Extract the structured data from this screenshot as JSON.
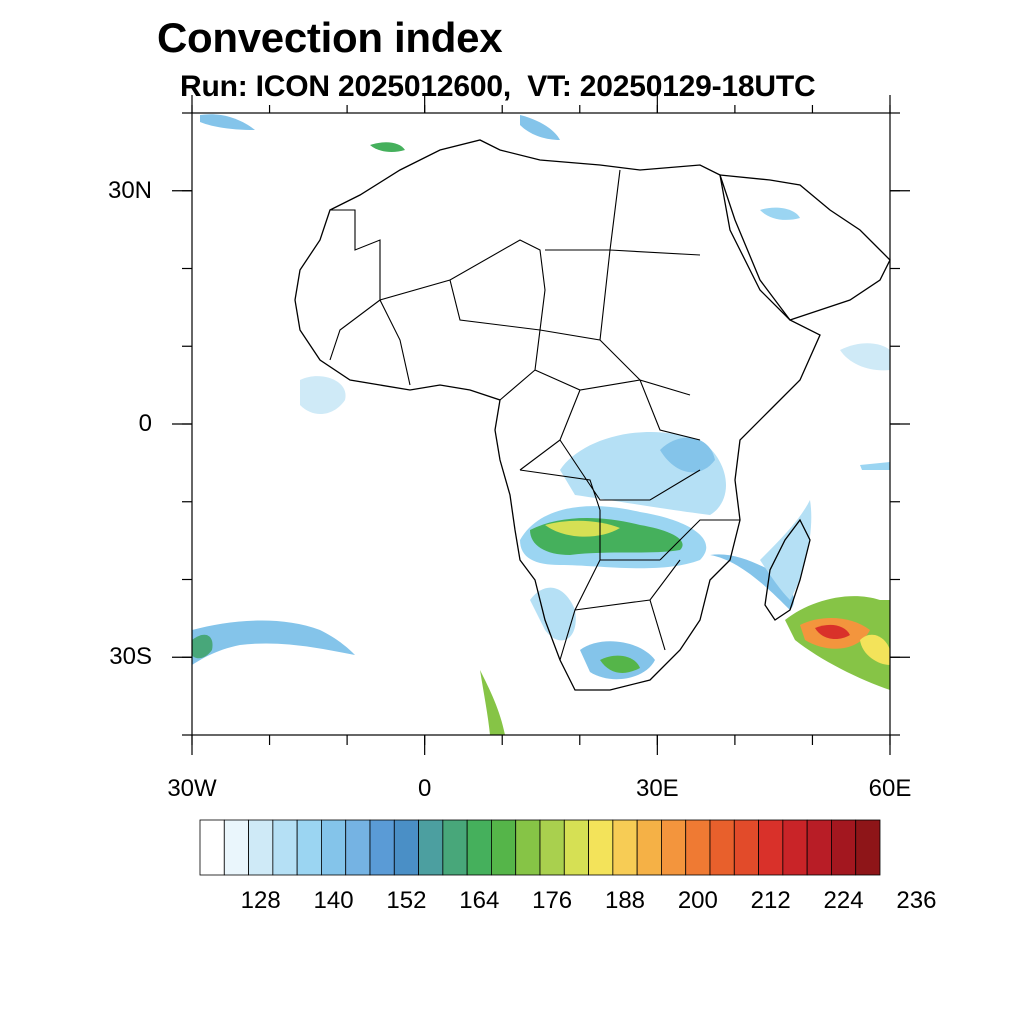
{
  "title": "Convection index",
  "subtitle": "Run: ICON 2025012600,  VT: 20250129-18UTC",
  "map": {
    "extent": {
      "lon_min": -30,
      "lon_max": 60,
      "lat_min": -40,
      "lat_max": 40
    },
    "lat_ticks": [
      {
        "label": "30N",
        "lat": 30
      },
      {
        "label": "0",
        "lat": 0
      },
      {
        "label": "30S",
        "lat": -30
      }
    ],
    "lon_ticks": [
      {
        "label": "30W",
        "lon": -30
      },
      {
        "label": "0",
        "lon": 0
      },
      {
        "label": "30E",
        "lon": 30
      },
      {
        "label": "60E",
        "lon": 60
      }
    ]
  },
  "colorbar": {
    "labels": [
      "128",
      "140",
      "152",
      "164",
      "176",
      "188",
      "200",
      "212",
      "224",
      "236"
    ],
    "colors": [
      "#ffffff",
      "#eaf6fc",
      "#cfeaf7",
      "#b5e0f5",
      "#9bd5f2",
      "#84c4ea",
      "#75b3e3",
      "#5a9bd6",
      "#4a8fc6",
      "#4c9fa0",
      "#48a77a",
      "#45b05c",
      "#55b549",
      "#86c446",
      "#a9d04e",
      "#d6e054",
      "#f3e35a",
      "#f7cc55",
      "#f5b146",
      "#f3953d",
      "#ef7a33",
      "#e8602c",
      "#e24b2a",
      "#d9312a",
      "#c92428",
      "#b81d26",
      "#a3171f",
      "#8e1518"
    ]
  }
}
